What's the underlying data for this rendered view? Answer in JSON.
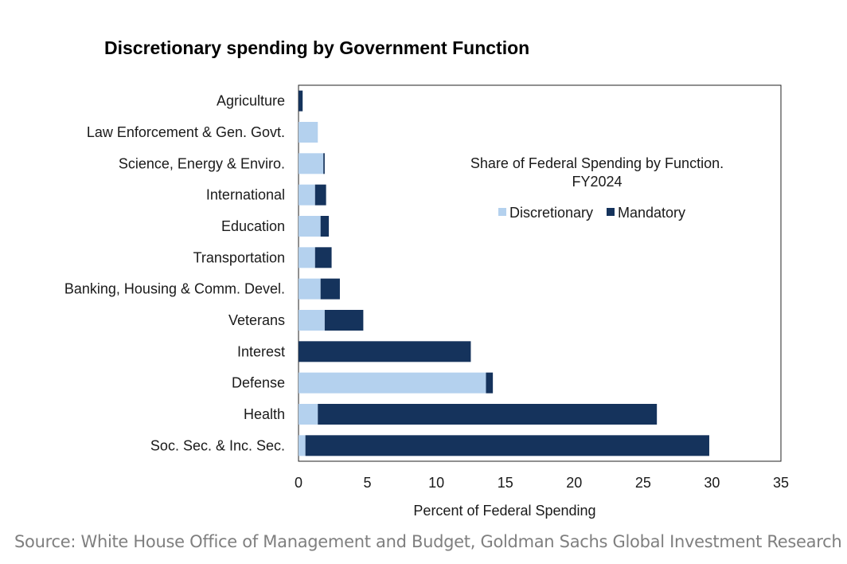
{
  "title": "Discretionary spending by Government Function",
  "source": "Source: White House Office of Management and Budget, Goldman Sachs Global Investment Research",
  "chart_data": {
    "type": "bar",
    "orientation": "horizontal",
    "stacked": true,
    "title": "Discretionary spending by Government Function",
    "inset_title_lines": [
      "Share of Federal Spending by Function.",
      "FY2024"
    ],
    "xlabel": "Percent of Federal Spending",
    "ylabel": "",
    "xlim": [
      0,
      35
    ],
    "x_ticks": [
      "0",
      "5",
      "10",
      "15",
      "20",
      "25",
      "30",
      "35"
    ],
    "grid": false,
    "legend_position": "inside-top-right",
    "categories": [
      "Agriculture",
      "Law Enforcement & Gen. Govt.",
      "Science, Energy & Enviro.",
      "International",
      "Education",
      "Transportation",
      "Banking, Housing & Comm. Devel.",
      "Veterans",
      "Interest",
      "Defense",
      "Health",
      "Soc. Sec. & Inc. Sec."
    ],
    "series": [
      {
        "name": "Discretionary",
        "color": "#b4d1ee",
        "values": [
          0.0,
          1.4,
          1.8,
          1.2,
          1.6,
          1.2,
          1.6,
          1.9,
          0.0,
          13.6,
          1.4,
          0.5
        ]
      },
      {
        "name": "Mandatory",
        "color": "#15335c",
        "values": [
          0.3,
          0.0,
          0.1,
          0.8,
          0.6,
          1.2,
          1.4,
          2.8,
          12.5,
          0.5,
          24.6,
          29.3
        ]
      }
    ]
  }
}
